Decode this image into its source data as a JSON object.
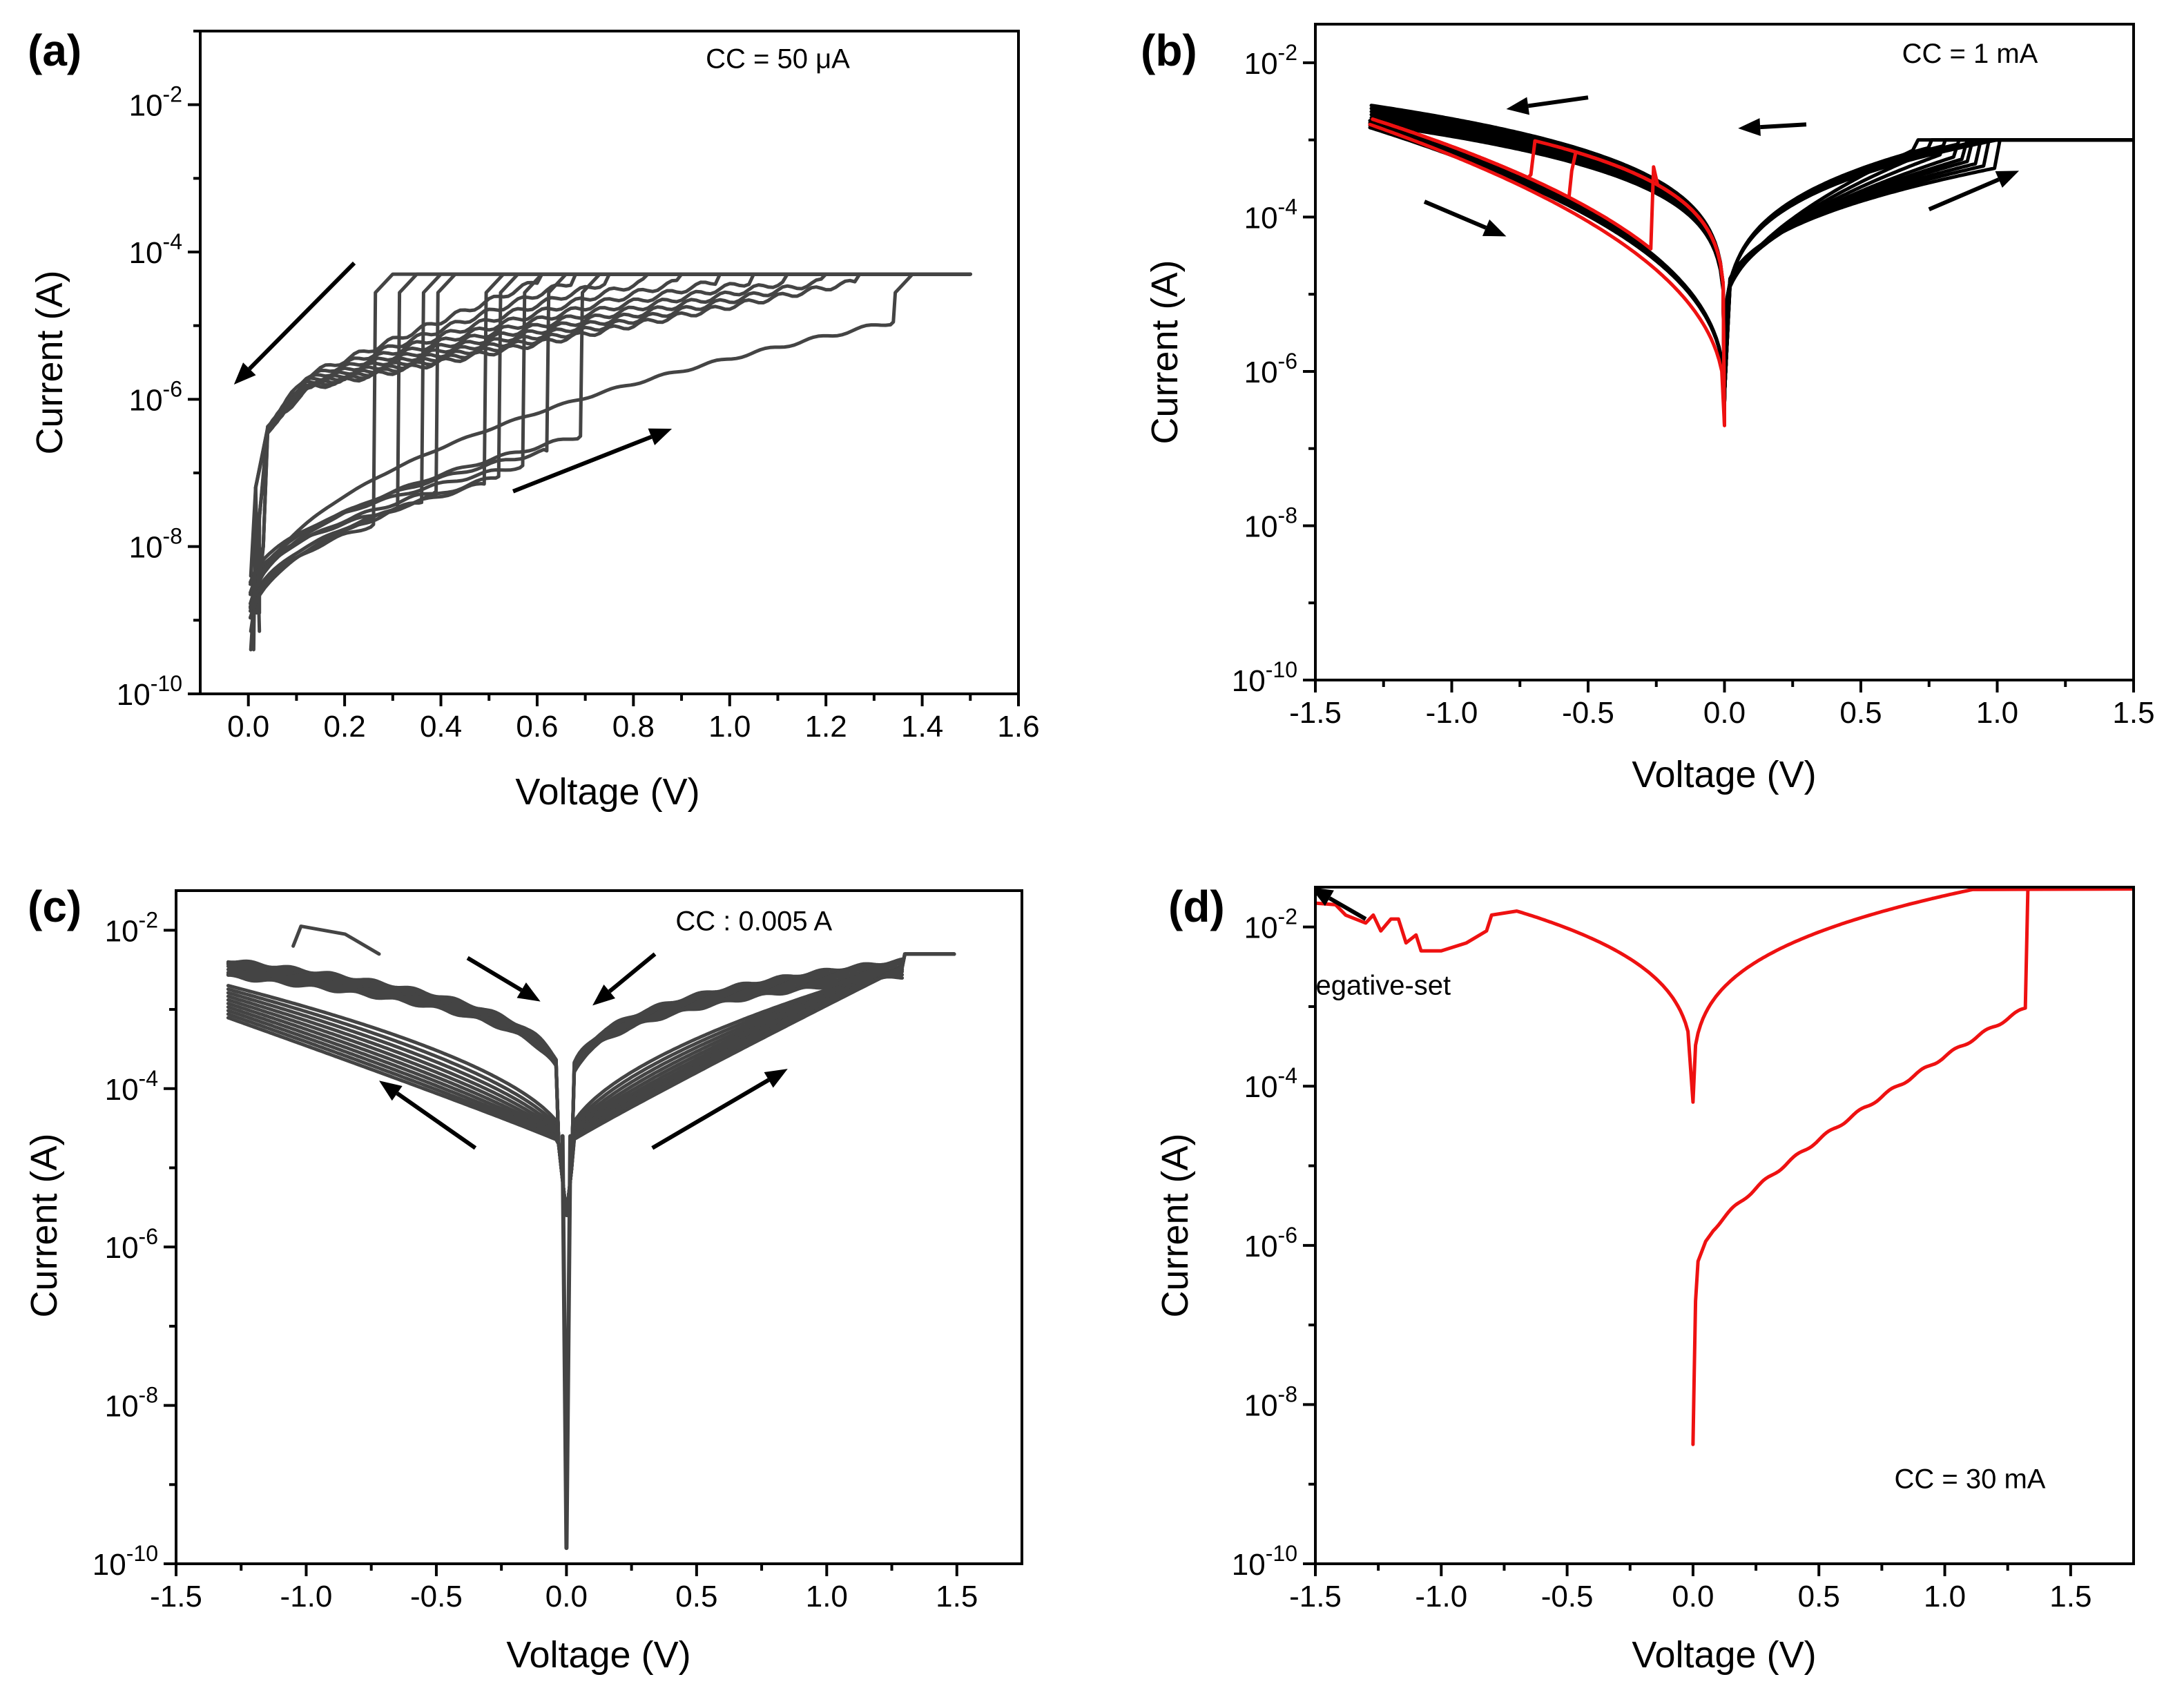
{
  "chart_data": [
    {
      "type": "line",
      "panel": "(a)",
      "xlabel": "Voltage (V)",
      "ylabel": "Current (A)",
      "xlim": [
        -0.1,
        1.6
      ],
      "ylim_exp": [
        -10,
        -1
      ],
      "xscale": "linear",
      "yscale": "log",
      "x_ticks": [
        0.0,
        0.2,
        0.4,
        0.6,
        0.8,
        1.0,
        1.2,
        1.4,
        1.6
      ],
      "x_tick_labels": [
        "0.0",
        "0.2",
        "0.4",
        "0.6",
        "0.8",
        "1.0",
        "1.2",
        "1.4",
        "1.6"
      ],
      "y_tick_exponents": [
        -10,
        -8,
        -6,
        -4,
        -2
      ],
      "annotations": [
        {
          "text": "CC = 50 μA",
          "x": 1.1,
          "y_exp": -1.5
        }
      ],
      "arrows": [
        {
          "x1": 0.22,
          "y1_exp": -4.15,
          "x2": -0.03,
          "y2_exp": -5.8
        },
        {
          "x1": 0.55,
          "y1_exp": -7.25,
          "x2": 0.88,
          "y2_exp": -6.4
        }
      ],
      "set_points": [
        {
          "vset": 1.34,
          "high_exp": -4.95
        },
        {
          "vset": 0.69,
          "high_exp": -6.5
        },
        {
          "vset": 0.62,
          "high_exp": -6.7
        },
        {
          "vset": 0.57,
          "high_exp": -6.9
        },
        {
          "vset": 0.52,
          "high_exp": -7.05
        },
        {
          "vset": 0.49,
          "high_exp": -7.15
        },
        {
          "vset": 0.39,
          "high_exp": -7.25
        },
        {
          "vset": 0.36,
          "high_exp": -7.4
        },
        {
          "vset": 0.31,
          "high_exp": -7.5
        },
        {
          "vset": 0.26,
          "high_exp": -7.7
        }
      ],
      "compliance_current": 5e-05,
      "series_color": "#444444"
    },
    {
      "type": "line",
      "panel": "(b)",
      "xlabel": "Voltage (V)",
      "ylabel": "Current (A)",
      "xlim": [
        -1.5,
        1.5
      ],
      "ylim_exp": [
        -10,
        -1.5
      ],
      "xscale": "linear",
      "yscale": "log",
      "x_ticks": [
        -1.5,
        -1.0,
        -0.5,
        0.0,
        0.5,
        1.0,
        1.5
      ],
      "x_tick_labels": [
        "-1.5",
        "-1.0",
        "-0.5",
        "0.0",
        "0.5",
        "1.0",
        "1.5"
      ],
      "y_tick_exponents": [
        -10,
        -8,
        -6,
        -4,
        -2
      ],
      "annotations": [
        {
          "text": "CC = 1 mA",
          "x": 0.9,
          "y_exp": -2.0
        }
      ],
      "arrows": [
        {
          "x1": -0.5,
          "y1_exp": -2.45,
          "x2": -0.8,
          "y2_exp": -2.6
        },
        {
          "x1": 0.3,
          "y1_exp": -2.8,
          "x2": 0.05,
          "y2_exp": -2.85
        },
        {
          "x1": -1.1,
          "y1_exp": -3.8,
          "x2": -0.8,
          "y2_exp": -4.25
        },
        {
          "x1": 0.75,
          "y1_exp": -3.9,
          "x2": 1.08,
          "y2_exp": -3.4
        }
      ],
      "compliance_current": 0.001,
      "black_set_voltages": [
        0.7,
        0.75,
        0.8,
        0.85,
        0.88,
        0.9,
        0.93,
        0.96,
        1.0
      ],
      "red_reset_voltages": [
        -0.25,
        -0.55,
        -0.7
      ],
      "series_colors": {
        "cycles": "#000000",
        "highlight": "#ee1111"
      }
    },
    {
      "type": "line",
      "panel": "(c)",
      "xlabel": "Voltage (V)",
      "ylabel": "Current (A)",
      "xlim": [
        -1.5,
        1.75
      ],
      "ylim_exp": [
        -10,
        -1.5
      ],
      "xscale": "linear",
      "yscale": "log",
      "x_ticks": [
        -1.5,
        -1.0,
        -0.5,
        0.0,
        0.5,
        1.0,
        1.5
      ],
      "x_tick_labels": [
        "-1.5",
        "-1.0",
        "-0.5",
        "0.0",
        "0.5",
        "1.0",
        "1.5"
      ],
      "y_tick_exponents": [
        -10,
        -8,
        -6,
        -4,
        -2
      ],
      "annotations": [
        {
          "text": "CC : 0.005 A",
          "x": 0.72,
          "y_exp": -2.0
        }
      ],
      "arrows": [
        {
          "x1": -0.38,
          "y1_exp": -2.35,
          "x2": -0.1,
          "y2_exp": -2.9
        },
        {
          "x1": 0.34,
          "y1_exp": -2.3,
          "x2": 0.1,
          "y2_exp": -2.95
        },
        {
          "x1": -0.35,
          "y1_exp": -4.75,
          "x2": -0.72,
          "y2_exp": -3.9
        },
        {
          "x1": 0.33,
          "y1_exp": -4.75,
          "x2": 0.85,
          "y2_exp": -3.75
        }
      ],
      "compliance_current": 0.005,
      "series_color": "#444444"
    },
    {
      "type": "line",
      "panel": "(d)",
      "xlabel": "Voltage (V)",
      "ylabel": "Current (A)",
      "xlim": [
        -1.5,
        1.75
      ],
      "ylim_exp": [
        -10,
        -1.5
      ],
      "xscale": "linear",
      "yscale": "log",
      "x_ticks": [
        -1.5,
        -1.0,
        -0.5,
        0.0,
        0.5,
        1.0,
        1.5
      ],
      "x_tick_labels": [
        "-1.5",
        "-1.0",
        "-0.5",
        "0.0",
        "0.5",
        "1.0",
        "1.5"
      ],
      "y_tick_exponents": [
        -10,
        -8,
        -6,
        -4,
        -2
      ],
      "annotations": [
        {
          "text": "Negative-set",
          "x": -1.27,
          "y_exp": -2.85
        },
        {
          "text": "CC  = 30 mA",
          "x": 1.1,
          "y_exp": -9.05
        }
      ],
      "arrows": [
        {
          "x1": -1.3,
          "y1_exp": -1.9,
          "x2": -1.52,
          "y2_exp": -1.5
        }
      ],
      "compliance_current": 0.03,
      "vset": 1.33,
      "series_color": "#ee1111"
    }
  ]
}
